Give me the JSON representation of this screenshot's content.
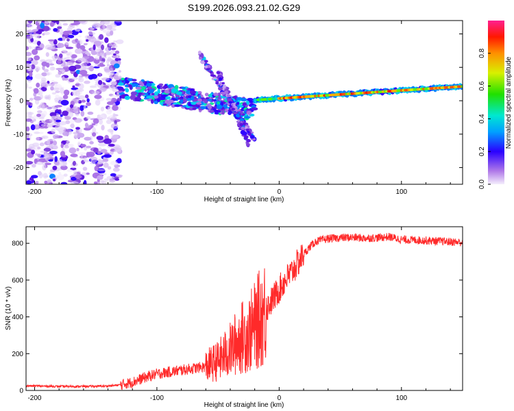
{
  "title": "S199.2026.093.21.02.G29",
  "colors": {
    "snr_line": "#ff2a2a",
    "axis": "#000000"
  },
  "chart_data": [
    {
      "type": "heatmap",
      "xlabel": "Height of straight line (km)",
      "ylabel": "Frequency (Hz)",
      "xlim": [
        -207,
        150
      ],
      "ylim": [
        -25,
        24
      ],
      "xticks": [
        -200,
        -100,
        0,
        100
      ],
      "xtick_labels": [
        "-200",
        "-100",
        "0",
        "100"
      ],
      "yticks": [
        -20,
        -10,
        0,
        10,
        20
      ],
      "ytick_labels": [
        "-20",
        "-10",
        "0",
        "10",
        "20"
      ],
      "colorbar": {
        "label": "Normalized spectral amplitude",
        "range": [
          0,
          1
        ],
        "ticks": [
          0.0,
          0.2,
          0.4,
          0.6,
          0.8
        ],
        "tick_labels": [
          "0.0",
          "0.2",
          "0.4",
          "0.6",
          "0.8"
        ]
      }
    },
    {
      "type": "line",
      "xlabel": "Height of straight line (km)",
      "ylabel": "SNR (10 * v/v)",
      "xlim": [
        -207,
        150
      ],
      "ylim": [
        0,
        890
      ],
      "xticks": [
        -200,
        -100,
        0,
        100
      ],
      "xtick_labels": [
        "-200",
        "-100",
        "0",
        "100"
      ],
      "yticks": [
        0,
        200,
        400,
        600,
        800
      ],
      "ytick_labels": [
        "0",
        "200",
        "400",
        "600",
        "800"
      ],
      "series": [
        {
          "name": "SNR",
          "x": [
            -207,
            -180,
            -160,
            -140,
            -130,
            -120,
            -110,
            -100,
            -90,
            -80,
            -70,
            -60,
            -50,
            -40,
            -35,
            -30,
            -25,
            -20,
            -15,
            -10,
            -5,
            0,
            5,
            10,
            15,
            20,
            25,
            30,
            40,
            50,
            60,
            70,
            80,
            90,
            100,
            110,
            120,
            130,
            140,
            150
          ],
          "values": [
            25,
            22,
            22,
            24,
            30,
            45,
            70,
            90,
            100,
            110,
            120,
            130,
            160,
            220,
            260,
            290,
            310,
            350,
            400,
            450,
            500,
            550,
            600,
            640,
            690,
            740,
            780,
            810,
            825,
            830,
            832,
            828,
            830,
            835,
            820,
            818,
            815,
            812,
            808,
            805
          ]
        }
      ]
    }
  ]
}
